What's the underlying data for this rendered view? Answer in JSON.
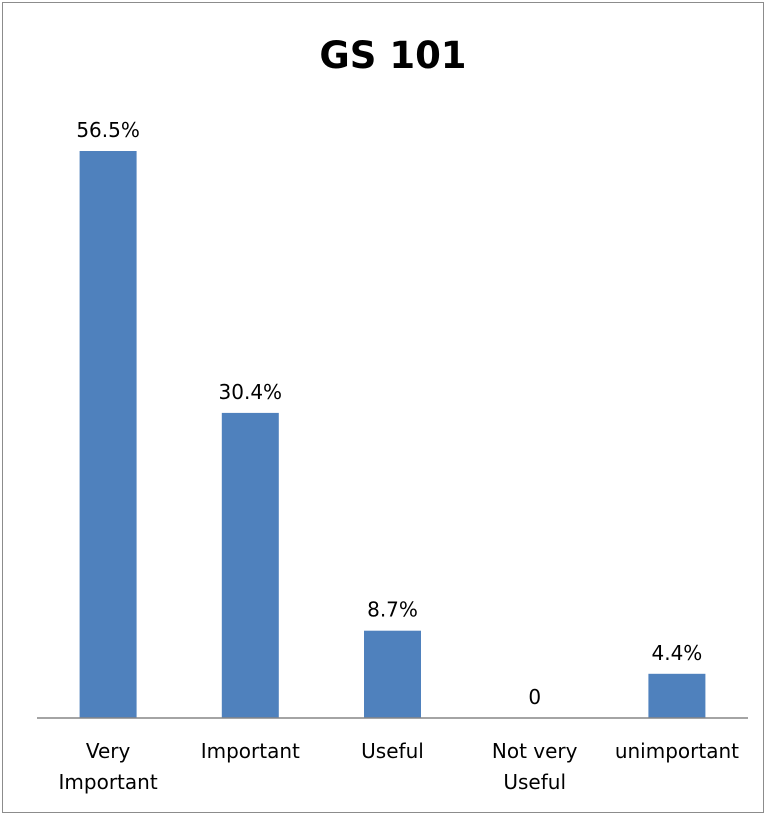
{
  "chart_data": {
    "type": "bar",
    "title": "GS 101",
    "xlabel": "",
    "ylabel": "",
    "categories": [
      [
        "Very",
        "Important"
      ],
      [
        "Important"
      ],
      [
        "Useful"
      ],
      [
        "Not very",
        "Useful"
      ],
      [
        "unimportant"
      ]
    ],
    "values": [
      56.5,
      30.4,
      8.7,
      0,
      4.4
    ],
    "data_labels": [
      "56.5%",
      "30.4%",
      "8.7%",
      "0",
      "4.4%"
    ],
    "ylim": [
      0,
      60
    ],
    "grid": false,
    "legend": "none",
    "bar_color": "#4f81bd",
    "axis_color": "#868686"
  }
}
